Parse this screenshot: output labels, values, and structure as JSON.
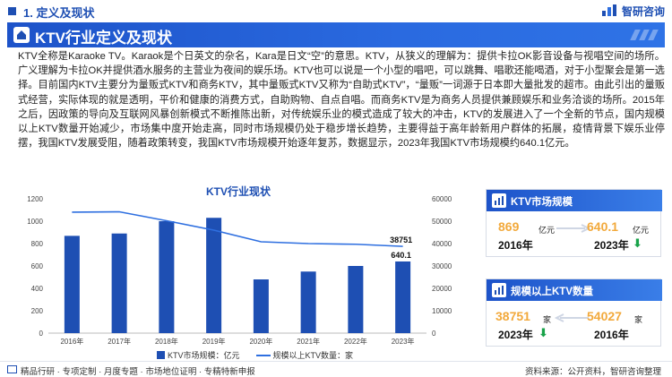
{
  "header": {
    "section_label": "1. 定义及现状",
    "logo_text": "智研咨询"
  },
  "title_band": {
    "title": "KTV行业定义及现状"
  },
  "paragraph": "KTV全称是Karaoke TV。Karaok是个日英文的杂名，Kara是日文“空”的意思。KTV，从狭义的理解为：提供卡拉OK影音设备与视唱空间的场所。广义理解为卡拉OK并提供酒水服务的主营业为夜间的娱乐场。KTV也可以说是一个小型的唱吧，可以跳舞、唱歌还能喝酒，对于小型聚会是第一选择。目前国内KTV主要分为量贩式KTV和商务KTV，其中量贩式KTV又称为“自助式KTV”，“量贩”一词源于日本即大量批发的超市。由此引出的量贩式经营，实际体现的就是透明，平价和健康的消费方式，自助购物、自点自唱。而商务KTV是为商务人员提供兼顾娱乐和业务洽谈的场所。2015年之后，因政策的导向及互联网风暴创新模式不断推陈出新，对传统娱乐业的模式造成了较大的冲击，KTV的发展进入了一个全新的节点，国内规模以上KTV数量开始减少，市场集中度开始走高，同时市场规模仍处于稳步增长趋势，主要得益于高年龄新用户群体的拓展，疫情背景下娱乐业停摆，我国KTV发展受阻，随着政策转变，我国KTV市场规模开始逐年复苏，数据显示，2023年我国KTV市场规模约640.1亿元。",
  "chart_data": {
    "type": "bar",
    "title": "KTV行业现状",
    "categories": [
      "2016年",
      "2017年",
      "2018年",
      "2019年",
      "2020年",
      "2021年",
      "2022年",
      "2023年"
    ],
    "series": [
      {
        "name": "KTV市场规模：亿元",
        "type": "bar",
        "axis": "left",
        "values": [
          869,
          890,
          1000,
          1030,
          480,
          550,
          600,
          640.1
        ],
        "color": "#1e4fb3"
      },
      {
        "name": "规模以上KTV数量：家",
        "type": "line",
        "axis": "right",
        "values": [
          54027,
          54200,
          50200,
          46000,
          40800,
          40000,
          39700,
          38751
        ],
        "color": "#2e6fe0"
      }
    ],
    "left_axis": {
      "ylim": [
        0,
        1200
      ],
      "ticks": [
        "0",
        "200",
        "400",
        "600",
        "800",
        "1000",
        "1200"
      ]
    },
    "right_axis": {
      "ylim": [
        0,
        60000
      ],
      "ticks": [
        "0",
        "10000",
        "20000",
        "30000",
        "40000",
        "50000",
        "60000"
      ]
    },
    "data_labels": [
      "38751",
      "640.1"
    ],
    "legend_position": "bottom",
    "grid": false
  },
  "cards": [
    {
      "title": "KTV市场规模",
      "left_value": "869",
      "left_unit": "亿元",
      "left_year": "2016年",
      "right_value": "640.1",
      "right_unit": "亿元",
      "right_year": "2023年",
      "trend": "down"
    },
    {
      "title": "规模以上KTV数量",
      "left_value": "38751",
      "left_unit": "家",
      "left_year": "2023年",
      "right_value": "54027",
      "right_unit": "家",
      "right_year": "2016年",
      "trend": "down"
    }
  ],
  "footer": {
    "left_text": "精品行研 · 专项定制 · 月度专题 · 市场地位证明 · 专精特新申报",
    "right_text": "资料来源：公开资料，智研咨询整理"
  },
  "colors": {
    "brand_blue": "#1e4fb3",
    "accent_orange": "#f2a93b",
    "trend_green": "#19a34a"
  }
}
